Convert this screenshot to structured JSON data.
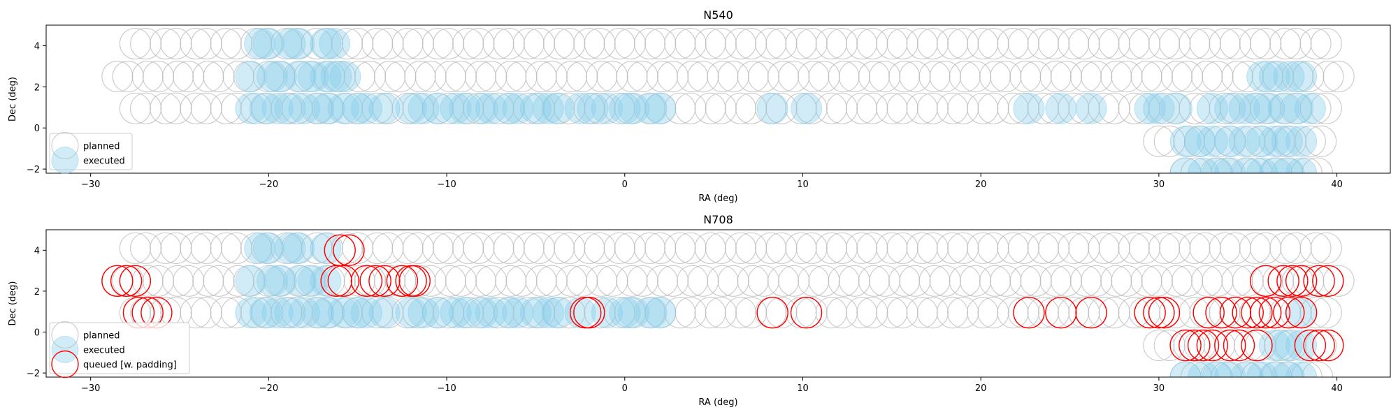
{
  "chart_data": [
    {
      "type": "scatter",
      "title": "N540",
      "xlabel": "RA (deg)",
      "ylabel": "Dec (deg)",
      "xlim": [
        -32.5,
        43
      ],
      "ylim": [
        -2.2,
        5
      ],
      "xticks": [
        -30,
        -20,
        -10,
        0,
        10,
        20,
        30,
        40
      ],
      "yticks": [
        -2,
        0,
        2,
        4
      ],
      "legend_position": "lower-left",
      "legend": [
        "planned",
        "executed"
      ],
      "planned_rows": [
        {
          "dec": 4.1,
          "ra_start": -27.5,
          "ra_end": 39.0,
          "step": 1.7
        },
        {
          "dec": 2.5,
          "ra_start": -28.5,
          "ra_end": 39.5,
          "step": 1.7
        },
        {
          "dec": 0.95,
          "ra_start": -27.5,
          "ra_end": 39.0,
          "step": 1.7
        },
        {
          "dec": -0.65,
          "ra_start": 30.0,
          "ra_end": 39.0,
          "step": 1.7
        },
        {
          "dec": -2.2,
          "ra_start": 31.5,
          "ra_end": 39.0,
          "step": 1.7
        }
      ],
      "executed_rows": [
        {
          "dec": 4.1,
          "ra": [
            -20.5,
            -20.0,
            -18.8,
            -18.3,
            -16.8,
            -16.3
          ]
        },
        {
          "dec": 2.5,
          "ra": [
            -21.0,
            -19.8,
            -19.3,
            -18.2,
            -17.5,
            -16.8,
            -16.2,
            -15.7
          ]
        },
        {
          "dec": 0.95,
          "ra": [
            -21.0,
            -20.2,
            -19.5,
            -18.8,
            -18.0,
            -17.2,
            -16.6,
            -15.8,
            -15.0,
            -14.5,
            -13.5,
            -12.0,
            -11.3,
            -10.5,
            -9.5,
            -9.0,
            -8.0,
            -7.5,
            -6.5,
            -6.0,
            -5.0,
            -4.3,
            -3.8,
            -2.5,
            -1.8,
            -1.0,
            0.0,
            0.5,
            1.5,
            2.0,
            8.3,
            10.2,
            22.7,
            24.5,
            26.2,
            29.5,
            30.0,
            31.0,
            33.0,
            34.0,
            34.8,
            35.5,
            36.2,
            37.0,
            37.8,
            38.5
          ]
        },
        {
          "dec": 2.5,
          "ra": [
            35.8,
            36.5,
            37.3,
            38.0
          ]
        },
        {
          "dec": -0.65,
          "ra": [
            31.5,
            32.3,
            33.0,
            34.0,
            34.8,
            35.8,
            36.5,
            37.2,
            38.0
          ]
        },
        {
          "dec": -2.2,
          "ra": [
            31.5,
            32.5,
            33.3,
            34.0,
            35.0,
            35.8,
            36.5,
            37.3,
            38.0
          ]
        }
      ]
    },
    {
      "type": "scatter",
      "title": "N708",
      "xlabel": "RA (deg)",
      "ylabel": "Dec (deg)",
      "xlim": [
        -32.5,
        43
      ],
      "ylim": [
        -2.2,
        5
      ],
      "xticks": [
        -30,
        -20,
        -10,
        0,
        10,
        20,
        30,
        40
      ],
      "yticks": [
        -2,
        0,
        2,
        4
      ],
      "legend_position": "lower-left",
      "legend": [
        "planned",
        "executed",
        "queued [w. padding]"
      ],
      "planned_rows": [
        {
          "dec": 4.1,
          "ra_start": -27.5,
          "ra_end": 39.0,
          "step": 1.7
        },
        {
          "dec": 2.5,
          "ra_start": -28.5,
          "ra_end": 39.5,
          "step": 1.7
        },
        {
          "dec": 0.95,
          "ra_start": -27.5,
          "ra_end": 39.0,
          "step": 1.7
        },
        {
          "dec": -0.65,
          "ra_start": 30.0,
          "ra_end": 39.0,
          "step": 1.7
        },
        {
          "dec": -2.2,
          "ra_start": 31.5,
          "ra_end": 39.0,
          "step": 1.7
        }
      ],
      "executed_rows": [
        {
          "dec": 4.1,
          "ra": [
            -20.5,
            -20.0,
            -18.8,
            -18.3,
            -16.8
          ]
        },
        {
          "dec": 2.5,
          "ra": [
            -21.0,
            -19.8,
            -19.3,
            -18.2,
            -17.5,
            -16.8
          ]
        },
        {
          "dec": 0.95,
          "ra": [
            -21.0,
            -20.2,
            -19.5,
            -18.8,
            -18.0,
            -17.2,
            -16.6,
            -15.8,
            -15.0,
            -14.5,
            -13.5,
            -12.0,
            -11.3,
            -10.5,
            -9.5,
            -9.0,
            -8.0,
            -7.5,
            -6.5,
            -6.0,
            -5.0,
            -4.3,
            -3.8,
            -2.5,
            -1.0,
            0.0,
            0.5,
            1.5,
            2.0,
            38.0
          ]
        },
        {
          "dec": -0.65,
          "ra": [
            36.5,
            37.2,
            38.0
          ]
        },
        {
          "dec": -2.2,
          "ra": [
            31.5,
            32.5,
            33.3,
            34.0,
            35.0,
            35.8,
            36.5,
            37.3,
            38.0
          ]
        }
      ],
      "queued_rows": [
        {
          "dec": 4.0,
          "ra": [
            -16.0,
            -15.5
          ]
        },
        {
          "dec": 2.5,
          "ra": [
            -28.5,
            -28.0,
            -27.5,
            -16.2,
            -15.8,
            -14.5,
            -14.0,
            -13.5,
            -12.5,
            -12.0,
            -11.8,
            36.0,
            37.0,
            37.5,
            38.0,
            39.0,
            39.5
          ]
        },
        {
          "dec": 0.95,
          "ra": [
            -27.3,
            -26.8,
            -26.3,
            -2.2,
            -2.0,
            8.3,
            10.2,
            22.7,
            24.5,
            26.2,
            29.5,
            30.0,
            30.3,
            32.8,
            33.5,
            34.3,
            35.0,
            35.5,
            36.0,
            36.5,
            37.3,
            38.0
          ]
        },
        {
          "dec": -0.65,
          "ra": [
            31.5,
            32.0,
            32.5,
            33.0,
            34.0,
            34.5,
            35.5,
            38.5,
            39.0,
            39.5
          ]
        }
      ]
    }
  ]
}
